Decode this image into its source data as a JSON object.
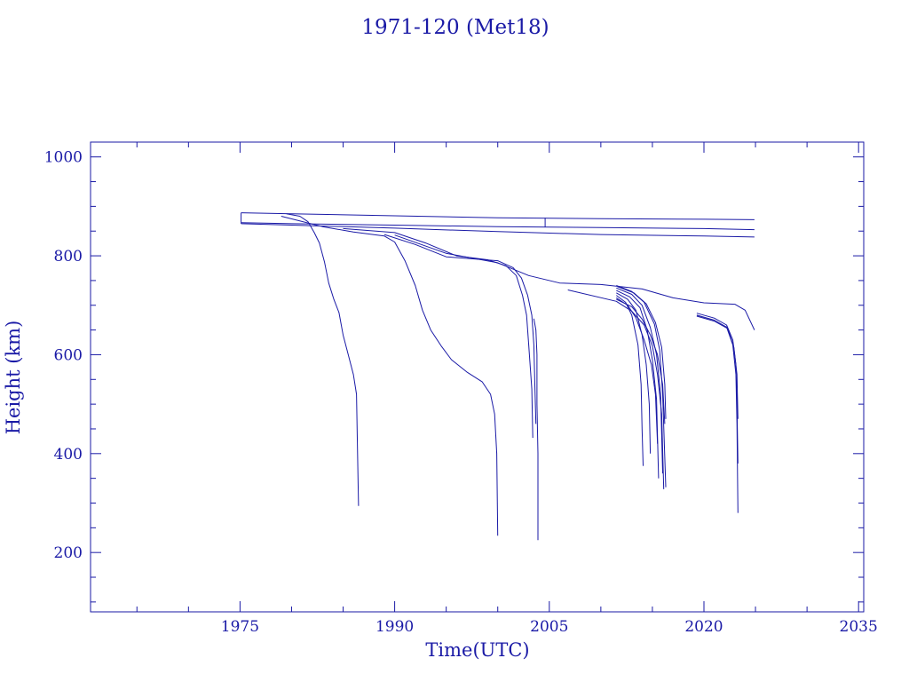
{
  "colors": {
    "foreground": "#1a1aa6",
    "background": "#ffffff"
  },
  "chart_data": {
    "type": "line",
    "title": "1971-120 (Met18)",
    "xlabel": "Time(UTC)",
    "ylabel": "Height (km)",
    "xlim": [
      1960.5,
      2035.5
    ],
    "ylim": [
      80,
      1030
    ],
    "x_ticks": [
      1975,
      1990,
      2005,
      2020,
      2035
    ],
    "y_ticks": [
      200,
      400,
      600,
      800,
      1000
    ],
    "grid": false,
    "legend": "none",
    "series": [
      {
        "values": [
          [
            1975.1,
            887
          ],
          [
            1980,
            885
          ],
          [
            1990,
            881
          ],
          [
            2000,
            877
          ],
          [
            2010,
            875
          ],
          [
            2020,
            874
          ],
          [
            2024.9,
            873
          ]
        ]
      },
      {
        "values": [
          [
            1975.1,
            867
          ],
          [
            1980,
            865
          ],
          [
            1990,
            862
          ],
          [
            2000,
            859
          ],
          [
            2010,
            857
          ],
          [
            2020,
            855
          ],
          [
            2024.9,
            853
          ]
        ]
      },
      {
        "values": [
          [
            1975.1,
            865
          ],
          [
            1980,
            862
          ],
          [
            1990,
            856
          ],
          [
            2000,
            849
          ],
          [
            2010,
            843
          ],
          [
            2020,
            840
          ],
          [
            2024.9,
            838
          ]
        ]
      },
      {
        "values": [
          [
            1975.1,
            887
          ],
          [
            1975.1,
            865
          ]
        ]
      },
      {
        "values": [
          [
            2004.6,
            877
          ],
          [
            2004.6,
            858
          ]
        ]
      },
      {
        "values": [
          [
            1979.5,
            885
          ],
          [
            1980.8,
            880
          ],
          [
            1981.6,
            869
          ],
          [
            1982.2,
            847
          ],
          [
            1982.7,
            826
          ],
          [
            1983.2,
            787
          ],
          [
            1983.6,
            745
          ],
          [
            1984.1,
            712
          ],
          [
            1984.6,
            685
          ],
          [
            1985.0,
            640
          ],
          [
            1985.5,
            600
          ],
          [
            1986.0,
            560
          ],
          [
            1986.3,
            520
          ],
          [
            1986.4,
            400
          ],
          [
            1986.5,
            294
          ]
        ]
      },
      {
        "values": [
          [
            1979.0,
            880
          ],
          [
            1983,
            859
          ],
          [
            1986,
            848
          ],
          [
            1989,
            840
          ],
          [
            1990.0,
            828
          ],
          [
            1991.0,
            790
          ],
          [
            1992.0,
            740
          ],
          [
            1992.7,
            690
          ],
          [
            1993.5,
            650
          ],
          [
            1994.5,
            618
          ],
          [
            1995.5,
            590
          ],
          [
            1997.0,
            565
          ],
          [
            1998.5,
            545
          ],
          [
            1999.3,
            520
          ],
          [
            1999.7,
            480
          ],
          [
            1999.9,
            400
          ],
          [
            2000.0,
            234
          ]
        ]
      },
      {
        "values": [
          [
            1985.0,
            855
          ],
          [
            1990,
            847
          ],
          [
            1993,
            826
          ],
          [
            1996,
            800
          ],
          [
            1999,
            792
          ],
          [
            2000.8,
            780
          ],
          [
            2001.8,
            760
          ],
          [
            2002.4,
            720
          ],
          [
            2002.8,
            680
          ],
          [
            2003.0,
            620
          ],
          [
            2003.3,
            530
          ],
          [
            2003.4,
            432
          ]
        ]
      },
      {
        "values": [
          [
            1989,
            843
          ],
          [
            1992,
            823
          ],
          [
            1995,
            798
          ],
          [
            2000,
            790
          ],
          [
            2001.5,
            776
          ],
          [
            2002.3,
            755
          ],
          [
            2002.9,
            720
          ],
          [
            2003.3,
            680
          ],
          [
            2003.5,
            620
          ],
          [
            2003.6,
            540
          ],
          [
            2003.7,
            460
          ]
        ]
      },
      {
        "values": [
          [
            2003.5,
            673
          ],
          [
            2003.7,
            650
          ],
          [
            2003.8,
            600
          ],
          [
            2003.8,
            500
          ],
          [
            2003.9,
            400
          ],
          [
            2003.9,
            225
          ]
        ]
      },
      {
        "values": [
          [
            1990,
            842
          ],
          [
            1995,
            805
          ],
          [
            2000,
            786
          ],
          [
            2003,
            760
          ],
          [
            2006,
            745
          ],
          [
            2010,
            742
          ],
          [
            2014,
            733
          ],
          [
            2017,
            715
          ],
          [
            2020,
            705
          ],
          [
            2023,
            702
          ],
          [
            2024,
            690
          ],
          [
            2024.9,
            650
          ]
        ]
      },
      {
        "values": [
          [
            2006.8,
            731
          ],
          [
            2011.5,
            708
          ],
          [
            2013.0,
            688
          ],
          [
            2014.2,
            660
          ],
          [
            2015.0,
            618
          ],
          [
            2015.5,
            560
          ],
          [
            2015.9,
            480
          ],
          [
            2016.1,
            328
          ]
        ]
      },
      {
        "values": [
          [
            2011.5,
            740
          ],
          [
            2013.0,
            728
          ],
          [
            2014.2,
            706
          ],
          [
            2015.2,
            662
          ],
          [
            2015.7,
            610
          ],
          [
            2016.0,
            520
          ],
          [
            2016.3,
            332
          ]
        ]
      },
      {
        "values": [
          [
            2011.5,
            735
          ],
          [
            2013.0,
            722
          ],
          [
            2014.0,
            700
          ],
          [
            2014.8,
            655
          ],
          [
            2015.4,
            600
          ],
          [
            2015.8,
            520
          ],
          [
            2016.0,
            360
          ]
        ]
      },
      {
        "values": [
          [
            2011.5,
            730
          ],
          [
            2012.8,
            717
          ],
          [
            2013.8,
            695
          ],
          [
            2014.5,
            650
          ],
          [
            2015.0,
            590
          ],
          [
            2015.4,
            510
          ],
          [
            2015.6,
            350
          ]
        ]
      },
      {
        "values": [
          [
            2011.5,
            725
          ],
          [
            2012.6,
            712
          ],
          [
            2013.4,
            690
          ],
          [
            2014.0,
            640
          ],
          [
            2014.4,
            580
          ],
          [
            2014.7,
            500
          ],
          [
            2014.8,
            400
          ]
        ]
      },
      {
        "values": [
          [
            2011.5,
            720
          ],
          [
            2012.4,
            706
          ],
          [
            2013.0,
            680
          ],
          [
            2013.6,
            620
          ],
          [
            2013.9,
            540
          ],
          [
            2014.0,
            450
          ],
          [
            2014.1,
            375
          ]
        ]
      },
      {
        "values": [
          [
            2011.5,
            715
          ],
          [
            2012.6,
            700
          ],
          [
            2013.4,
            675
          ],
          [
            2014.2,
            630
          ],
          [
            2014.9,
            580
          ],
          [
            2015.3,
            520
          ],
          [
            2015.5,
            420
          ]
        ]
      },
      {
        "values": [
          [
            2011.5,
            712
          ],
          [
            2013.0,
            697
          ],
          [
            2014.0,
            672
          ],
          [
            2014.8,
            640
          ],
          [
            2015.5,
            600
          ],
          [
            2016.0,
            540
          ],
          [
            2016.2,
            460
          ]
        ]
      },
      {
        "values": [
          [
            2011.6,
            738
          ],
          [
            2013.2,
            725
          ],
          [
            2014.4,
            703
          ],
          [
            2015.3,
            665
          ],
          [
            2015.9,
            615
          ],
          [
            2016.2,
            540
          ],
          [
            2016.3,
            470
          ]
        ]
      },
      {
        "values": [
          [
            2019.3,
            684
          ],
          [
            2021.0,
            674
          ],
          [
            2022.2,
            660
          ],
          [
            2022.8,
            630
          ],
          [
            2023.1,
            580
          ],
          [
            2023.2,
            500
          ],
          [
            2023.3,
            380
          ]
        ]
      },
      {
        "values": [
          [
            2019.3,
            680
          ],
          [
            2021.0,
            670
          ],
          [
            2022.2,
            656
          ],
          [
            2022.8,
            620
          ],
          [
            2023.1,
            560
          ],
          [
            2023.2,
            460
          ],
          [
            2023.3,
            280
          ]
        ]
      },
      {
        "values": [
          [
            2019.3,
            678
          ],
          [
            2021.0,
            668
          ],
          [
            2022.3,
            653
          ],
          [
            2022.9,
            615
          ],
          [
            2023.2,
            560
          ],
          [
            2023.3,
            470
          ]
        ]
      }
    ]
  }
}
